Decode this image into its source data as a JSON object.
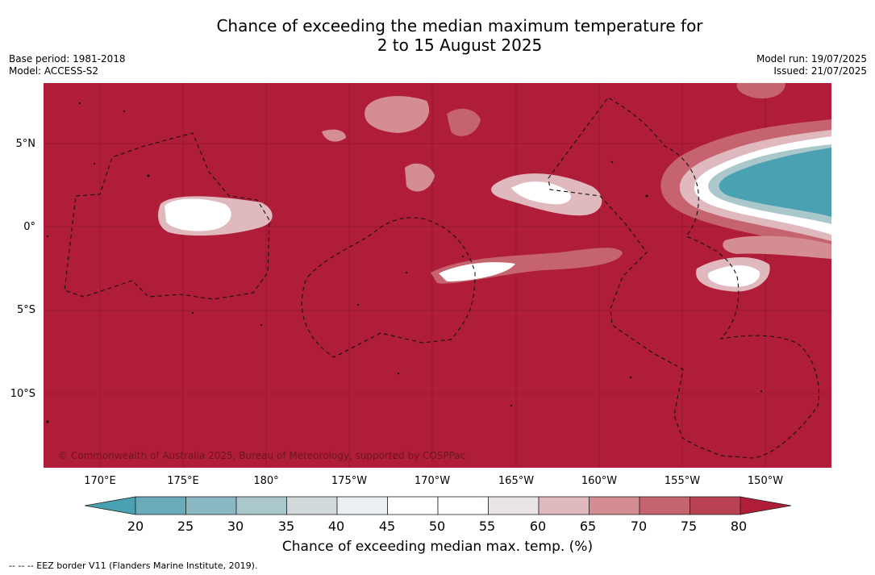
{
  "title": {
    "line1": "Chance of exceeding the median maximum temperature for",
    "line2": "2 to 15 August 2025"
  },
  "meta": {
    "base_period": "Base period: 1981-2018",
    "model": "Model: ACCESS-S2",
    "model_run": "Model run: 19/07/2025",
    "issued": "Issued: 21/07/2025"
  },
  "map": {
    "latitude_labels": [
      "5°N",
      "0°",
      "5°S",
      "10°S"
    ],
    "longitude_labels": [
      "170°E",
      "175°E",
      "180°",
      "175°W",
      "170°W",
      "165°W",
      "160°W",
      "155°W",
      "150°W"
    ],
    "copyright": "© Commonwealth of Australia 2025, Bureau of Meteorology, supported by COSPPac",
    "background_color": "#b01d38"
  },
  "colorbar": {
    "ticks": [
      "20",
      "25",
      "30",
      "35",
      "40",
      "45",
      "50",
      "55",
      "60",
      "65",
      "70",
      "75",
      "80"
    ],
    "colors": [
      "#4aa1b1",
      "#6aabba",
      "#89b8c3",
      "#aac7cb",
      "#d1d9db",
      "#ecf0f3",
      "#ffffff",
      "#ffffff",
      "#e9e5e6",
      "#dfb9bd",
      "#d48e93",
      "#c5646f",
      "#b84252",
      "#b01d38"
    ],
    "label": "Chance of exceeding median max. temp. (%)"
  },
  "footnote": "--  --  -- EEZ border V11 (Flanders Marine Institute, 2019)."
}
